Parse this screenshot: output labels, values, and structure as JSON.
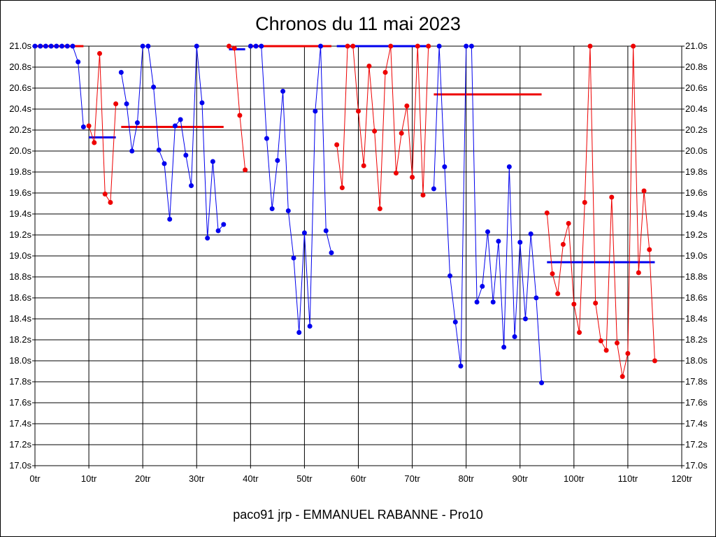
{
  "chart_data": {
    "type": "line",
    "title": "Chronos du 11 mai 2023",
    "footer": "paco91 jrp - EMMANUEL RABANNE - Pro10",
    "xlim": [
      0,
      120
    ],
    "ylim": [
      17.0,
      21.0
    ],
    "x_ticks": [
      0,
      10,
      20,
      30,
      40,
      50,
      60,
      70,
      80,
      90,
      100,
      110,
      120
    ],
    "x_tick_labels": [
      "0tr",
      "10tr",
      "20tr",
      "30tr",
      "40tr",
      "50tr",
      "60tr",
      "70tr",
      "80tr",
      "90tr",
      "100tr",
      "110tr",
      "120tr"
    ],
    "y_ticks": [
      17.0,
      17.2,
      17.4,
      17.6,
      17.8,
      18.0,
      18.2,
      18.4,
      18.6,
      18.8,
      19.0,
      19.2,
      19.4,
      19.6,
      19.8,
      20.0,
      20.2,
      20.4,
      20.6,
      20.8,
      21.0
    ],
    "y_tick_labels": [
      "17.0s",
      "17.2s",
      "17.4s",
      "17.6s",
      "17.8s",
      "18.0s",
      "18.2s",
      "18.4s",
      "18.6s",
      "18.8s",
      "19.0s",
      "19.2s",
      "19.4s",
      "19.6s",
      "19.8s",
      "20.0s",
      "20.2s",
      "20.4s",
      "20.6s",
      "20.8s",
      "21.0s"
    ],
    "grid": true,
    "colors": {
      "blue": "#0000ee",
      "red": "#ee0000"
    },
    "series": [
      {
        "color": "blue",
        "x": [
          0,
          1,
          2,
          3,
          4,
          5,
          6,
          7,
          8,
          9
        ],
        "y": [
          21.0,
          21.0,
          21.0,
          21.0,
          21.0,
          21.0,
          21.0,
          21.0,
          20.85,
          20.23
        ]
      },
      {
        "color": "red",
        "x": [
          10,
          11,
          12,
          13,
          14,
          15
        ],
        "y": [
          20.24,
          20.08,
          20.93,
          19.59,
          19.51,
          20.45
        ]
      },
      {
        "color": "blue",
        "x": [
          16,
          17,
          18,
          19,
          20,
          21,
          22,
          23,
          24,
          25,
          26,
          27,
          28,
          29,
          30,
          31,
          32,
          33,
          34,
          35
        ],
        "y": [
          20.75,
          20.45,
          20.0,
          20.27,
          21.0,
          21.0,
          20.61,
          20.01,
          19.88,
          19.35,
          20.24,
          20.3,
          19.96,
          19.67,
          21.0,
          20.46,
          19.17,
          19.9,
          19.24,
          19.3
        ]
      },
      {
        "color": "red",
        "x": [
          36,
          37,
          38,
          39
        ],
        "y": [
          21.0,
          20.98,
          20.34,
          19.82
        ]
      },
      {
        "color": "blue",
        "x": [
          40,
          41,
          42,
          43,
          44,
          45,
          46,
          47,
          48,
          49,
          50,
          51,
          52,
          53,
          54,
          55
        ],
        "y": [
          21.0,
          21.0,
          21.0,
          20.12,
          19.45,
          19.91,
          20.57,
          19.43,
          18.98,
          18.27,
          19.22,
          18.33,
          20.38,
          21.0,
          19.24,
          19.03
        ]
      },
      {
        "color": "red",
        "x": [
          56,
          57,
          58,
          59,
          60,
          61,
          62,
          63,
          64,
          65,
          66,
          67,
          68,
          69,
          70,
          71,
          72,
          73
        ],
        "y": [
          20.06,
          19.65,
          21.0,
          21.0,
          20.38,
          19.86,
          20.81,
          20.19,
          19.45,
          20.75,
          21.0,
          19.79,
          20.17,
          20.43,
          19.75,
          21.0,
          19.58,
          21.0
        ]
      },
      {
        "color": "blue",
        "x": [
          74,
          75,
          76,
          77,
          78,
          79,
          80,
          81,
          82,
          83,
          84,
          85,
          86,
          87,
          88,
          89,
          90,
          91,
          92,
          93,
          94
        ],
        "y": [
          19.64,
          21.0,
          19.85,
          18.81,
          18.37,
          17.95,
          21.0,
          21.0,
          18.56,
          18.71,
          19.23,
          18.56,
          19.14,
          18.13,
          19.85,
          18.23,
          19.13,
          18.4,
          19.21,
          18.6,
          17.79
        ]
      },
      {
        "color": "red",
        "x": [
          95,
          96,
          97,
          98,
          99,
          100,
          101,
          102,
          103,
          104,
          105,
          106,
          107,
          108,
          109,
          110,
          111,
          112,
          113,
          114,
          115
        ],
        "y": [
          19.41,
          18.83,
          18.64,
          19.11,
          19.31,
          18.54,
          18.27,
          19.51,
          21.0,
          18.55,
          18.19,
          18.1,
          19.56,
          18.17,
          17.85,
          18.07,
          21.0,
          18.84,
          19.62,
          19.06,
          18.0
        ]
      }
    ],
    "average_lines": [
      {
        "color": "red",
        "x1": 0,
        "x2": 9,
        "y": 21.0
      },
      {
        "color": "blue",
        "x1": 10,
        "x2": 15,
        "y": 20.13
      },
      {
        "color": "red",
        "x1": 16,
        "x2": 35,
        "y": 20.23
      },
      {
        "color": "blue",
        "x1": 36,
        "x2": 39,
        "y": 20.97
      },
      {
        "color": "red",
        "x1": 40,
        "x2": 55,
        "y": 21.0
      },
      {
        "color": "blue",
        "x1": 56,
        "x2": 73,
        "y": 21.0
      },
      {
        "color": "red",
        "x1": 74,
        "x2": 94,
        "y": 20.54
      },
      {
        "color": "blue",
        "x1": 95,
        "x2": 115,
        "y": 18.94
      }
    ]
  }
}
